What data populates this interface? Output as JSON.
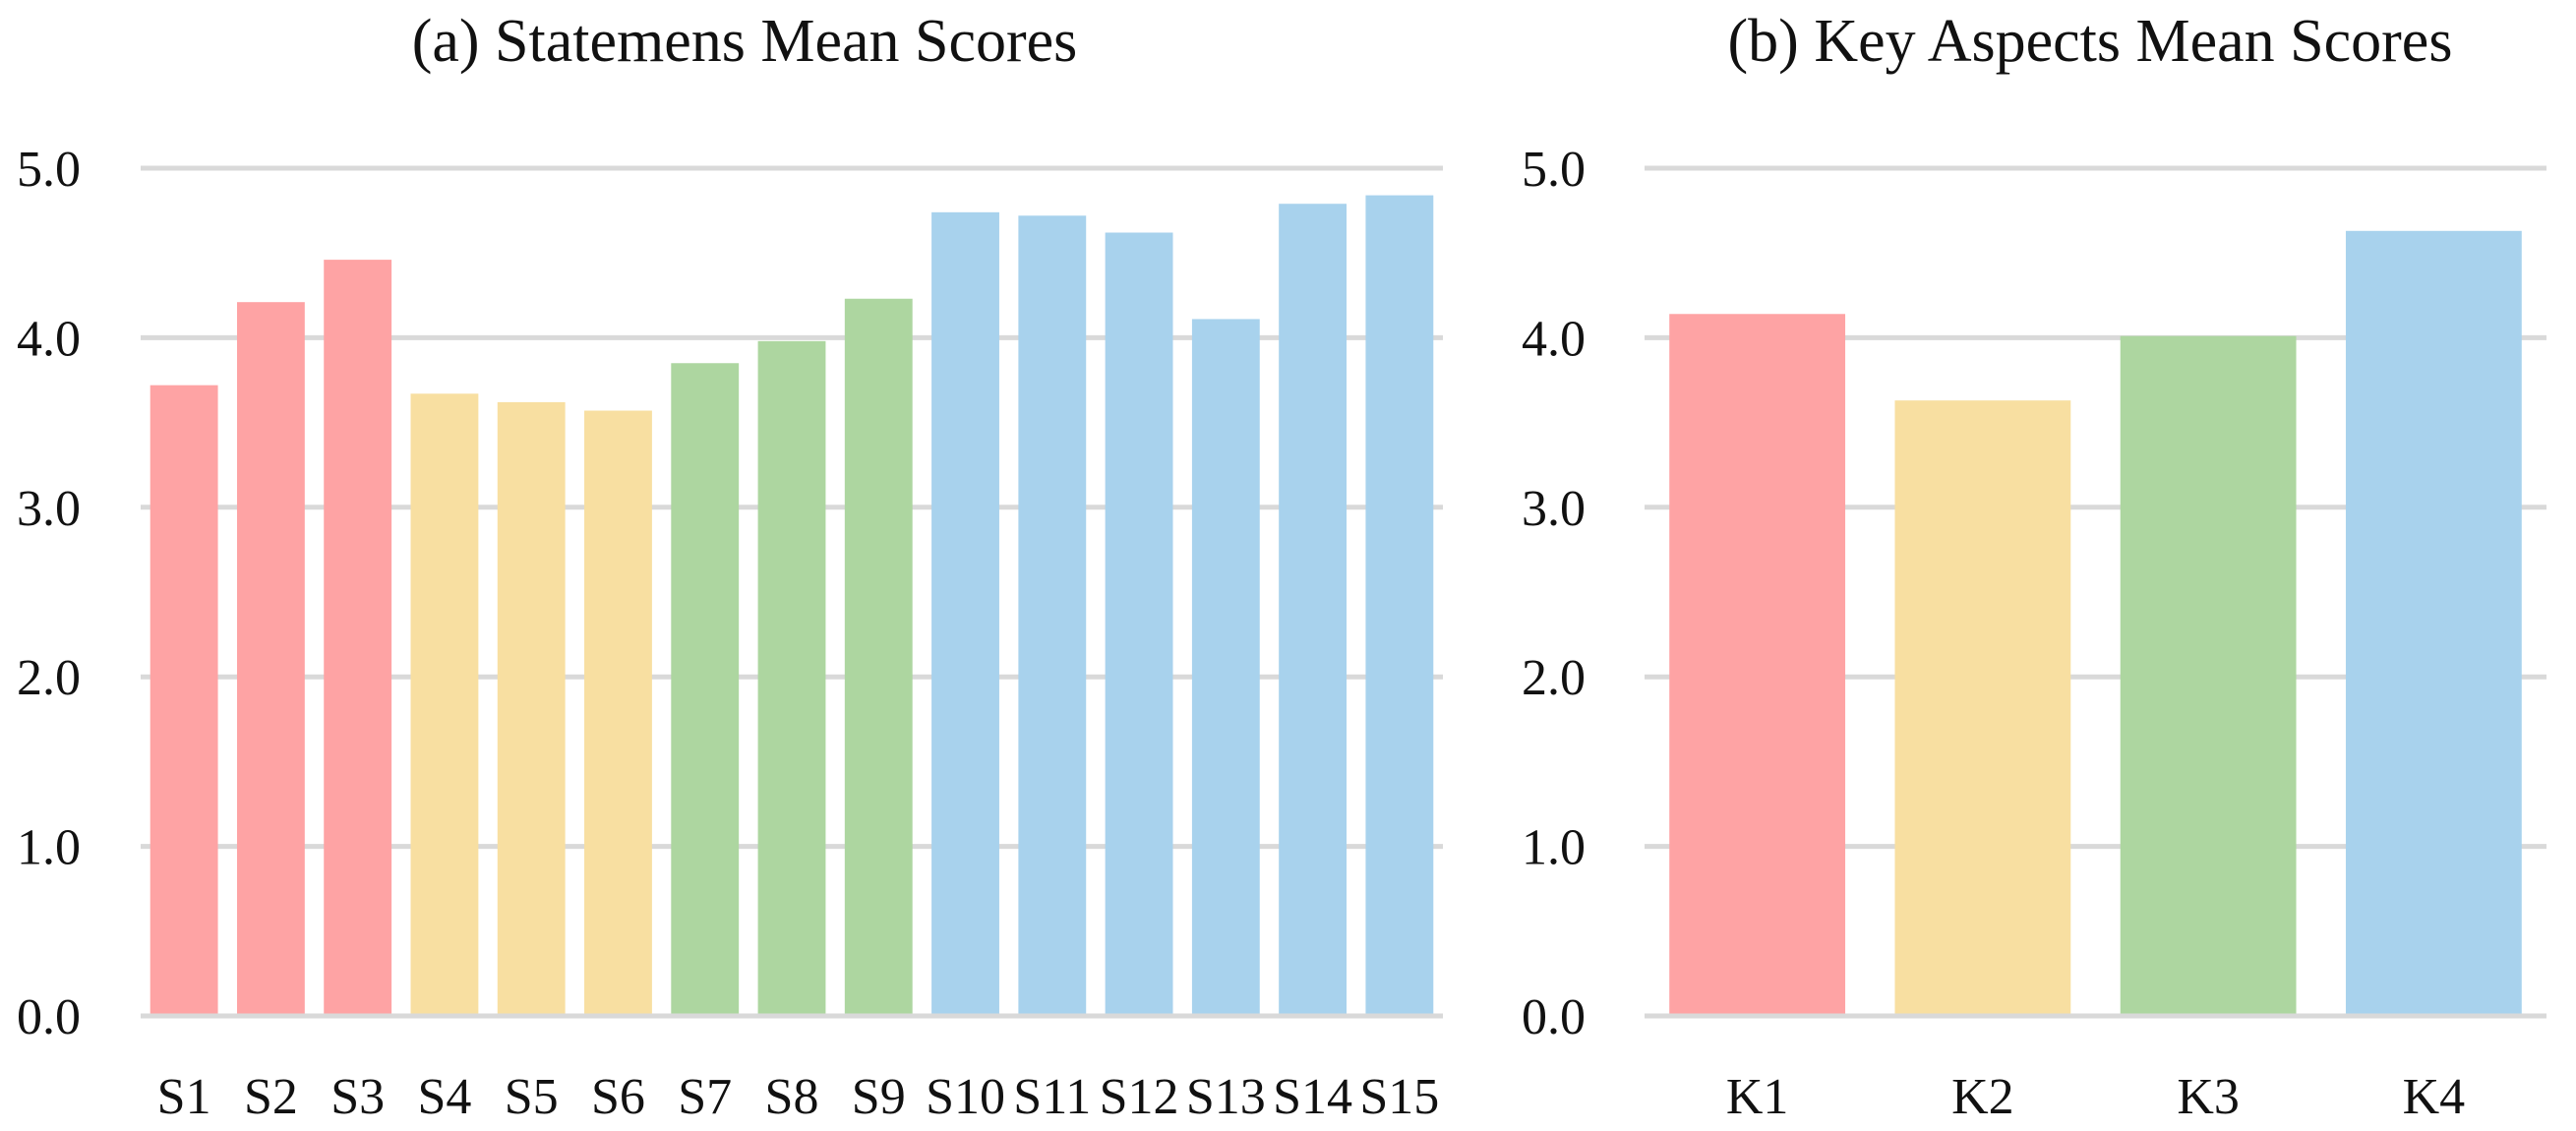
{
  "chart_data": [
    {
      "type": "bar",
      "title": "(a) Statemens Mean Scores",
      "xlabel": "",
      "ylabel": "",
      "ylim": [
        0,
        5
      ],
      "yticks": [
        "0.0",
        "1.0",
        "2.0",
        "3.0",
        "4.0",
        "5.0"
      ],
      "grid": true,
      "categories": [
        "S1",
        "S2",
        "S3",
        "S4",
        "S5",
        "S6",
        "S7",
        "S8",
        "S9",
        "S10",
        "S11",
        "S12",
        "S13",
        "S14",
        "S15"
      ],
      "values": [
        3.72,
        4.21,
        4.46,
        3.67,
        3.62,
        3.57,
        3.85,
        3.98,
        4.23,
        4.74,
        4.72,
        4.62,
        4.11,
        4.79,
        4.84
      ],
      "colors": [
        "#fea3a4",
        "#fea3a4",
        "#fea3a4",
        "#f8dfa1",
        "#f8dfa1",
        "#f8dfa1",
        "#add6a0",
        "#add6a0",
        "#add6a0",
        "#a8d2ed",
        "#a8d2ed",
        "#a8d2ed",
        "#a8d2ed",
        "#a8d2ed",
        "#a8d2ed"
      ]
    },
    {
      "type": "bar",
      "title": "(b) Key Aspects Mean Scores",
      "xlabel": "",
      "ylabel": "",
      "ylim": [
        0,
        5
      ],
      "yticks": [
        "0.0",
        "1.0",
        "2.0",
        "3.0",
        "4.0",
        "5.0"
      ],
      "grid": true,
      "categories": [
        "K1",
        "K2",
        "K3",
        "K4"
      ],
      "values": [
        4.14,
        3.63,
        4.01,
        4.63
      ],
      "colors": [
        "#fea3a4",
        "#f8dfa1",
        "#add6a0",
        "#a8d2ed"
      ]
    }
  ]
}
